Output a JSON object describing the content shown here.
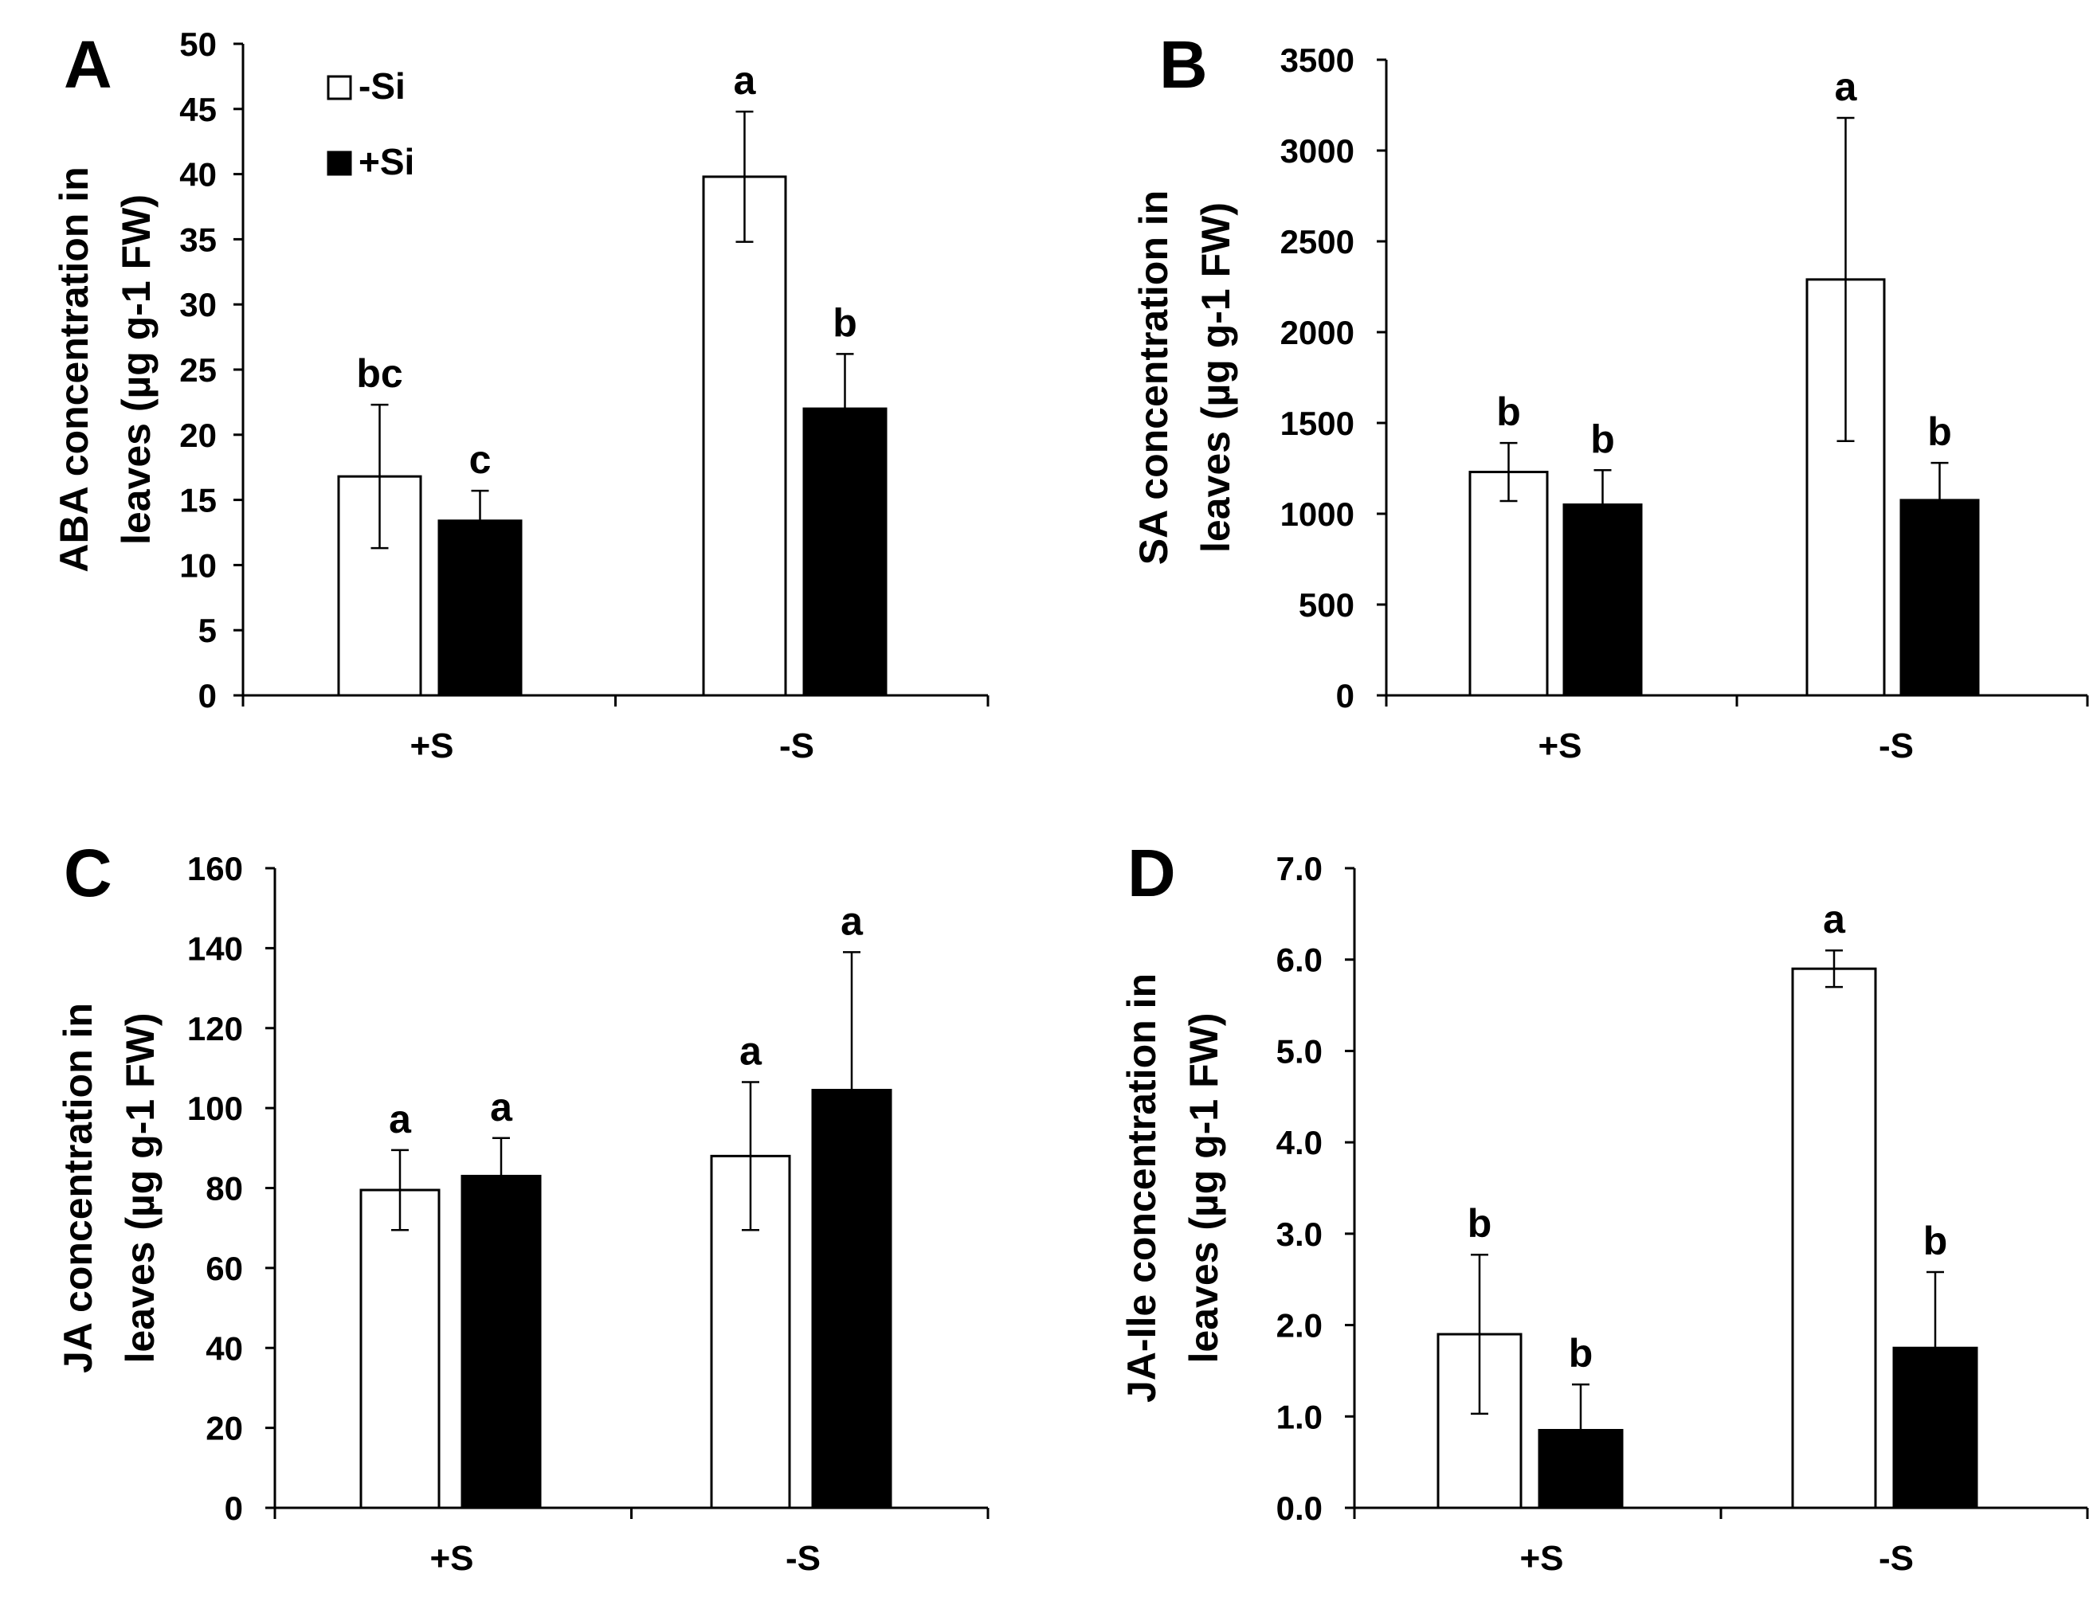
{
  "figure": {
    "background": "#ffffff",
    "bar_colors": {
      "-Si": "#ffffff",
      "+Si": "#000000"
    }
  },
  "legend": {
    "items": [
      {
        "label": "-Si",
        "fill": "#ffffff"
      },
      {
        "label": "+Si",
        "fill": "#000000"
      }
    ],
    "placement": "top-left of panel A"
  },
  "chart_data": [
    {
      "panel": "A",
      "type": "bar",
      "categories": [
        "+S",
        "-S"
      ],
      "series": [
        {
          "name": "-Si",
          "values": [
            16.8,
            39.8
          ],
          "errors": [
            5.5,
            5.0
          ],
          "letters": [
            "bc",
            "a"
          ]
        },
        {
          "name": "+Si",
          "values": [
            13.4,
            22.0
          ],
          "errors": [
            2.3,
            4.2
          ],
          "letters": [
            "c",
            "b"
          ]
        }
      ],
      "ylabel_line1": "ABA concentration in",
      "ylabel_line2": "leaves (µg g-1 FW)",
      "ylim": [
        0,
        50
      ],
      "yticks": [
        "0",
        "5",
        "10",
        "15",
        "20",
        "25",
        "30",
        "35",
        "40",
        "45",
        "50"
      ]
    },
    {
      "panel": "B",
      "type": "bar",
      "categories": [
        "+S",
        "-S"
      ],
      "series": [
        {
          "name": "-Si",
          "values": [
            1230,
            2290
          ],
          "errors": [
            160,
            890
          ],
          "letters": [
            "b",
            "a"
          ]
        },
        {
          "name": "+Si",
          "values": [
            1050,
            1075
          ],
          "errors": [
            190,
            205
          ],
          "letters": [
            "b",
            "b"
          ]
        }
      ],
      "ylabel_line1": "SA concentration in",
      "ylabel_line2": "leaves (µg g-1 FW)",
      "ylim": [
        0,
        3500
      ],
      "yticks": [
        "0",
        "500",
        "1000",
        "1500",
        "2000",
        "2500",
        "3000",
        "3500"
      ]
    },
    {
      "panel": "C",
      "type": "bar",
      "categories": [
        "+S",
        "-S"
      ],
      "series": [
        {
          "name": "-Si",
          "values": [
            79.5,
            88.0
          ],
          "errors": [
            10.0,
            18.5
          ],
          "letters": [
            "a",
            "a"
          ]
        },
        {
          "name": "+Si",
          "values": [
            83.0,
            104.5
          ],
          "errors": [
            9.5,
            34.5
          ],
          "letters": [
            "a",
            "a"
          ]
        }
      ],
      "ylabel_line1": "JA concentration in",
      "ylabel_line2": "leaves (µg g-1 FW)",
      "ylim": [
        0,
        160
      ],
      "yticks": [
        "0",
        "20",
        "40",
        "60",
        "80",
        "100",
        "120",
        "140",
        "160"
      ]
    },
    {
      "panel": "D",
      "type": "bar",
      "categories": [
        "+S",
        "-S"
      ],
      "series": [
        {
          "name": "-Si",
          "values": [
            1.9,
            5.9
          ],
          "errors": [
            0.87,
            0.2
          ],
          "letters": [
            "b",
            "a"
          ]
        },
        {
          "name": "+Si",
          "values": [
            0.85,
            1.75
          ],
          "errors": [
            0.5,
            0.83
          ],
          "letters": [
            "b",
            "b"
          ]
        }
      ],
      "ylabel_line1": "JA-Ile concentration in",
      "ylabel_line2": "leaves (µg g-1 FW)",
      "ylim": [
        0,
        7
      ],
      "yticks": [
        "0.0",
        "1.0",
        "2.0",
        "3.0",
        "4.0",
        "5.0",
        "6.0",
        "7.0"
      ]
    }
  ]
}
